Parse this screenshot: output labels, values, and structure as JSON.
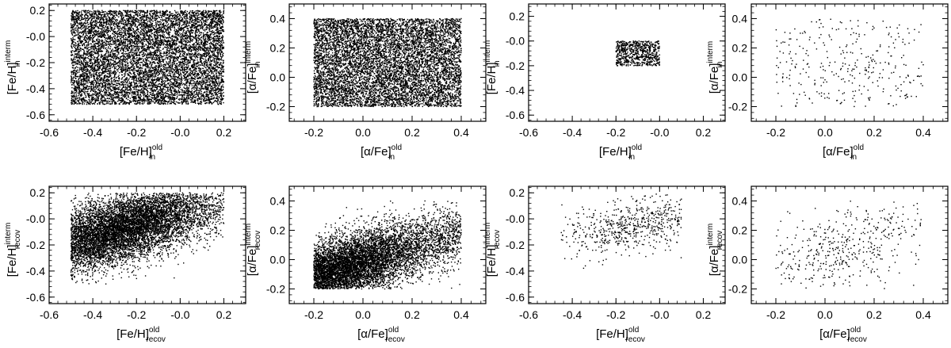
{
  "chart_data": [
    {
      "type": "scatter",
      "xlabel": "[Fe/H]",
      "xsup": "old",
      "xsub": "in",
      "ylabel": "[Fe/H]",
      "ysup": "interm",
      "ysub": "in",
      "xlim": [
        -0.6,
        0.3
      ],
      "ylim": [
        -0.65,
        0.25
      ],
      "xticks": [
        -0.6,
        -0.4,
        -0.2,
        0.0,
        0.2
      ],
      "xtick_labels": [
        "-0.6",
        "-0.4",
        "-0.2",
        "-0.0",
        "0.2"
      ],
      "yticks": [
        -0.6,
        -0.4,
        -0.2,
        0.0,
        0.2
      ],
      "ytick_labels": [
        "-0.6",
        "-0.4",
        "-0.2",
        "-0.0",
        "0.2"
      ],
      "points": {
        "distribution": "uniform",
        "n": 9000,
        "x_range": [
          -0.5,
          0.2
        ],
        "y_range": [
          -0.52,
          0.2
        ]
      }
    },
    {
      "type": "scatter",
      "xlabel": "[α/Fe]",
      "xsup": "old",
      "xsub": "in",
      "ylabel": "[α/Fe]",
      "ysup": "interm",
      "ysub": "in",
      "xlim": [
        -0.3,
        0.5
      ],
      "ylim": [
        -0.3,
        0.5
      ],
      "xticks": [
        -0.2,
        0.0,
        0.2,
        0.4
      ],
      "xtick_labels": [
        "-0.2",
        "0.0",
        "0.2",
        "0.4"
      ],
      "yticks": [
        -0.2,
        0.0,
        0.2,
        0.4
      ],
      "ytick_labels": [
        "-0.2",
        "0.0",
        "0.2",
        "0.4"
      ],
      "points": {
        "distribution": "uniform",
        "n": 8000,
        "x_range": [
          -0.2,
          0.4
        ],
        "y_range": [
          -0.2,
          0.4
        ]
      }
    },
    {
      "type": "scatter",
      "xlabel": "[Fe/H]",
      "xsup": "old",
      "xsub": "in",
      "ylabel": "[Fe/H]",
      "ysup": "interm",
      "ysub": "in",
      "xlim": [
        -0.6,
        0.3
      ],
      "ylim": [
        -0.65,
        0.3
      ],
      "xticks": [
        -0.6,
        -0.4,
        -0.2,
        0.0,
        0.2
      ],
      "xtick_labels": [
        "-0.6",
        "-0.4",
        "-0.2",
        "-0.0",
        "0.2"
      ],
      "yticks": [
        -0.6,
        -0.4,
        -0.2,
        0.0,
        0.2
      ],
      "ytick_labels": [
        "-0.6",
        "-0.4",
        "-0.2",
        "-0.0",
        "0.2"
      ],
      "points": {
        "distribution": "uniform",
        "n": 700,
        "x_range": [
          -0.2,
          0.0
        ],
        "y_range": [
          -0.2,
          0.0
        ]
      }
    },
    {
      "type": "scatter",
      "xlabel": "[α/Fe]",
      "xsup": "old",
      "xsub": "in",
      "ylabel": "[α/Fe]",
      "ysup": "interm",
      "ysub": "in",
      "xlim": [
        -0.3,
        0.5
      ],
      "ylim": [
        -0.3,
        0.5
      ],
      "xticks": [
        -0.2,
        0.0,
        0.2,
        0.4
      ],
      "xtick_labels": [
        "-0.2",
        "0.0",
        "0.2",
        "0.4"
      ],
      "yticks": [
        -0.2,
        0.0,
        0.2,
        0.4
      ],
      "ytick_labels": [
        "-0.2",
        "0.0",
        "0.2",
        "0.4"
      ],
      "points": {
        "distribution": "uniform",
        "n": 320,
        "x_range": [
          -0.2,
          0.4
        ],
        "y_range": [
          -0.2,
          0.4
        ]
      }
    },
    {
      "type": "scatter",
      "xlabel": "[Fe/H]",
      "xsup": "old",
      "xsub": "recov",
      "ylabel": "[Fe/H]",
      "ysup": "interm",
      "ysub": "recov",
      "xlim": [
        -0.6,
        0.3
      ],
      "ylim": [
        -0.65,
        0.25
      ],
      "xticks": [
        -0.6,
        -0.4,
        -0.2,
        0.0,
        0.2
      ],
      "xtick_labels": [
        "-0.6",
        "-0.4",
        "-0.2",
        "-0.0",
        "0.2"
      ],
      "yticks": [
        -0.6,
        -0.4,
        -0.2,
        0.0,
        0.2
      ],
      "ytick_labels": [
        "-0.6",
        "-0.4",
        "-0.2",
        "-0.0",
        "0.2"
      ],
      "points": {
        "distribution": "correlated",
        "n": 8000,
        "x_range": [
          -0.5,
          0.2
        ],
        "y_range": [
          -0.5,
          0.2
        ],
        "center": [
          -0.28,
          -0.08
        ],
        "slope": 0.45,
        "scatter": 0.13
      }
    },
    {
      "type": "scatter",
      "xlabel": "[α/Fe]",
      "xsup": "old",
      "xsub": "recov",
      "ylabel": "[α/Fe]",
      "ysup": "interm",
      "ysub": "recov",
      "xlim": [
        -0.3,
        0.5
      ],
      "ylim": [
        -0.3,
        0.5
      ],
      "xticks": [
        -0.2,
        0.0,
        0.2,
        0.4
      ],
      "xtick_labels": [
        "-0.2",
        "0.0",
        "0.2",
        "0.4"
      ],
      "yticks": [
        -0.2,
        0.0,
        0.2,
        0.4
      ],
      "ytick_labels": [
        "-0.2",
        "0.0",
        "0.2",
        "0.4"
      ],
      "points": {
        "distribution": "correlated",
        "n": 7500,
        "x_range": [
          -0.2,
          0.4
        ],
        "y_range": [
          -0.2,
          0.4
        ],
        "center": [
          -0.12,
          -0.08
        ],
        "slope": 0.5,
        "scatter": 0.11
      }
    },
    {
      "type": "scatter",
      "xlabel": "[Fe/H]",
      "xsup": "old",
      "xsub": "recov",
      "ylabel": "[Fe/H]",
      "ysup": "interm",
      "ysub": "recov",
      "xlim": [
        -0.6,
        0.3
      ],
      "ylim": [
        -0.65,
        0.25
      ],
      "xticks": [
        -0.6,
        -0.4,
        -0.2,
        0.0,
        0.2
      ],
      "xtick_labels": [
        "-0.6",
        "-0.4",
        "-0.2",
        "-0.0",
        "0.2"
      ],
      "yticks": [
        -0.6,
        -0.4,
        -0.2,
        0.0,
        0.2
      ],
      "ytick_labels": [
        "-0.6",
        "-0.4",
        "-0.2",
        "-0.0",
        "0.2"
      ],
      "points": {
        "distribution": "correlated",
        "n": 600,
        "x_range": [
          -0.45,
          0.1
        ],
        "y_range": [
          -0.5,
          0.2
        ],
        "center": [
          -0.12,
          -0.05
        ],
        "slope": 0.3,
        "scatter": 0.1
      }
    },
    {
      "type": "scatter",
      "xlabel": "[α/Fe]",
      "xsup": "old",
      "xsub": "recov",
      "ylabel": "[α/Fe]",
      "ysup": "interm",
      "ysub": "recov",
      "xlim": [
        -0.3,
        0.5
      ],
      "ylim": [
        -0.3,
        0.5
      ],
      "xticks": [
        -0.2,
        0.0,
        0.2,
        0.4
      ],
      "xtick_labels": [
        "-0.2",
        "0.0",
        "0.2",
        "0.4"
      ],
      "yticks": [
        -0.2,
        0.0,
        0.2,
        0.4
      ],
      "ytick_labels": [
        "-0.2",
        "0.0",
        "0.2",
        "0.4"
      ],
      "points": {
        "distribution": "correlated",
        "n": 450,
        "x_range": [
          -0.2,
          0.4
        ],
        "y_range": [
          -0.2,
          0.4
        ],
        "center": [
          0.08,
          0.08
        ],
        "slope": 0.4,
        "scatter": 0.13
      }
    }
  ]
}
